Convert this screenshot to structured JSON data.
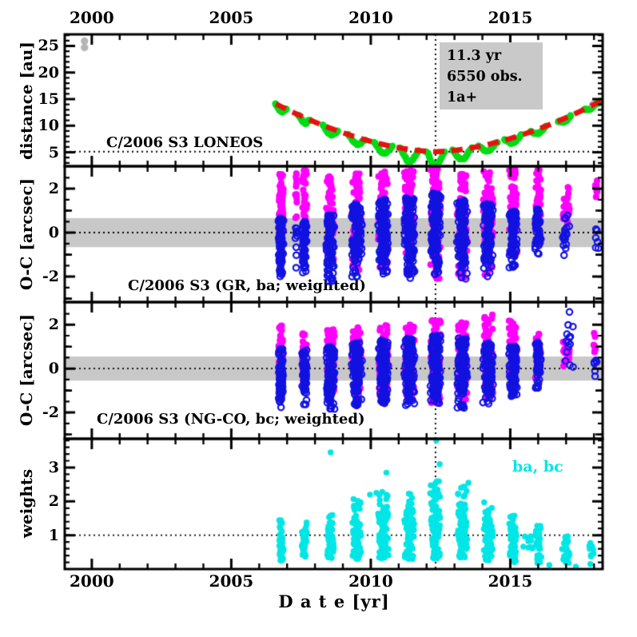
{
  "figure": {
    "background": "#ffffff",
    "annotation_box": {
      "bg": "#c9c9c9",
      "lines": [
        "11.3 yr",
        "6550 obs.",
        "1a+"
      ]
    },
    "colors": {
      "frame": "#000000",
      "red": "#ea1010",
      "green": "#00dc14",
      "magenta": "#ff00ff",
      "blue": "#1212e0",
      "cyan": "#00e6e6",
      "gray_band": "#c8c8c8",
      "gray_points": "#b5b5b5"
    }
  },
  "chart_data": {
    "type": "scatter",
    "title": "C/2006 S3 LONEOS",
    "x_axis": {
      "label": "D a t e [yr]",
      "range": [
        1999.03,
        2018.31
      ],
      "major_ticks": [
        2000,
        2005,
        2010,
        2015
      ],
      "major_tick_labels": [
        "2000",
        "2005",
        "2010",
        "2015"
      ],
      "minor_step": 1,
      "vline_dotted": 2012.32,
      "labels_on": "top-and-bottom"
    },
    "panels": [
      {
        "name": "distance",
        "ylabel": "distance [au]",
        "title": "C/2006 S3 LONEOS",
        "ylim": [
          2.38,
          27.17
        ],
        "ytick_labels": [
          "5",
          "10",
          "15",
          "20",
          "25"
        ],
        "ytick_values": [
          5,
          10,
          15,
          20,
          25
        ],
        "yminor_step": 1,
        "dotted_hline": 5.13,
        "model_curve": {
          "color": "red",
          "style": "thick-dashed",
          "perihelion_year": 2012.32,
          "perihelion_au": 5.13,
          "coeff": 0.462,
          "exponent": 1.7,
          "year_start": 2006.6,
          "year_end": 2018.25
        },
        "observed_seasons": {
          "color": "green",
          "marker": "filled-circle",
          "points_per_season": 18,
          "seasons": [
            [
              2006.78,
              0.2,
              0.9
            ],
            [
              2007.62,
              0.2,
              1.0
            ],
            [
              2008.55,
              0.27,
              1.2
            ],
            [
              2009.5,
              0.3,
              1.3
            ],
            [
              2010.45,
              0.33,
              1.6
            ],
            [
              2011.38,
              0.34,
              2.3
            ],
            [
              2012.32,
              0.34,
              2.5
            ],
            [
              2013.28,
              0.34,
              1.9
            ],
            [
              2014.2,
              0.33,
              1.3
            ],
            [
              2015.1,
              0.3,
              1.0
            ],
            [
              2016.0,
              0.27,
              0.8
            ],
            [
              2016.95,
              0.22,
              0.6
            ],
            [
              2017.85,
              0.2,
              0.5
            ],
            [
              2018.18,
              0.06,
              0.2
            ]
          ]
        },
        "extra_points": {
          "color": "gray_points",
          "points": [
            [
              1999.74,
              25.9
            ],
            [
              1999.74,
              24.7
            ],
            [
              2017.96,
              14.0
            ]
          ]
        }
      },
      {
        "name": "oc_gr",
        "ylabel": "O-C [arcsec]",
        "title": "C/2006 S3 (GR, ba; weighted)",
        "ylim": [
          -3.16,
          3.02
        ],
        "ytick_labels": [
          "-2",
          "0",
          "2"
        ],
        "ytick_values": [
          -2,
          0,
          2
        ],
        "ymedium_ticks": [
          -3,
          -1,
          1,
          3
        ],
        "yminor_step": 0.5,
        "dotted_hline": 0,
        "gray_band_halfwidth": 0.66,
        "series": [
          {
            "name": "ba-positive-residuals",
            "color": "magenta",
            "marker": "filled-circle",
            "clusters": [
              [
                2006.78,
                0.1,
                70,
                -0.15,
                2.85,
                0.45
              ],
              [
                2007.33,
                0.05,
                12,
                0.3,
                2.8,
                0.5
              ],
              [
                2007.62,
                0.1,
                50,
                -0.6,
                2.85,
                0.5
              ],
              [
                2008.55,
                0.16,
                85,
                -1.4,
                2.6,
                0.55
              ],
              [
                2009.5,
                0.2,
                95,
                -1.7,
                2.7,
                0.55
              ],
              [
                2010.45,
                0.2,
                105,
                -1.8,
                2.8,
                0.55
              ],
              [
                2011.38,
                0.2,
                110,
                -2.1,
                2.85,
                0.55
              ],
              [
                2012.32,
                0.2,
                115,
                -2.2,
                2.9,
                0.55
              ],
              [
                2013.28,
                0.2,
                105,
                -2.1,
                2.7,
                0.55
              ],
              [
                2014.2,
                0.2,
                95,
                -2.0,
                2.8,
                0.55
              ],
              [
                2015.1,
                0.15,
                85,
                -1.0,
                2.9,
                0.55
              ],
              [
                2016.0,
                0.12,
                50,
                -0.4,
                2.9,
                0.6
              ],
              [
                2017.0,
                0.15,
                25,
                0.1,
                2.1,
                0.5
              ],
              [
                2018.1,
                0.07,
                8,
                1.3,
                2.6,
                0.55
              ]
            ]
          },
          {
            "name": "ba-negative-residuals",
            "color": "blue",
            "marker": "open-circle",
            "clusters": [
              [
                2006.78,
                0.1,
                95,
                -2.1,
                0.7,
                0.6
              ],
              [
                2007.33,
                0.05,
                10,
                -1.6,
                0.3,
                0.6
              ],
              [
                2007.62,
                0.1,
                65,
                -2.0,
                0.5,
                0.6
              ],
              [
                2008.55,
                0.16,
                115,
                -2.3,
                0.8,
                0.6
              ],
              [
                2009.5,
                0.2,
                130,
                -2.0,
                1.3,
                0.6
              ],
              [
                2010.45,
                0.2,
                140,
                -1.9,
                1.5,
                0.6
              ],
              [
                2011.38,
                0.2,
                150,
                -2.1,
                1.6,
                0.6
              ],
              [
                2012.32,
                0.2,
                150,
                -1.9,
                1.8,
                0.6
              ],
              [
                2013.28,
                0.2,
                135,
                -2.2,
                1.5,
                0.6
              ],
              [
                2014.2,
                0.2,
                120,
                -2.0,
                1.3,
                0.6
              ],
              [
                2015.1,
                0.15,
                100,
                -1.6,
                1.0,
                0.6
              ],
              [
                2016.0,
                0.12,
                50,
                -1.0,
                1.1,
                0.55
              ],
              [
                2017.0,
                0.15,
                18,
                -1.2,
                0.9,
                0.6
              ],
              [
                2018.1,
                0.07,
                6,
                -1.1,
                0.4,
                0.6
              ]
            ]
          }
        ]
      },
      {
        "name": "oc_ngco",
        "ylabel": "O-C [arcsec]",
        "title": "C/2006 S3 (NG-CO, bc; weighted)",
        "ylim": [
          -3.2,
          3.03
        ],
        "ytick_labels": [
          "-2",
          "0",
          "2"
        ],
        "ytick_values": [
          -2,
          0,
          2
        ],
        "ymedium_ticks": [
          -3,
          -1,
          1,
          3
        ],
        "yminor_step": 0.5,
        "dotted_hline": 0,
        "gray_band_halfwidth": 0.55,
        "series": [
          {
            "name": "bc-positive-residuals",
            "color": "magenta",
            "marker": "filled-circle",
            "clusters": [
              [
                2006.78,
                0.1,
                60,
                -0.4,
                2.0,
                0.45
              ],
              [
                2007.62,
                0.1,
                45,
                -0.7,
                1.6,
                0.5
              ],
              [
                2008.55,
                0.16,
                85,
                -1.0,
                1.8,
                0.5
              ],
              [
                2009.5,
                0.2,
                95,
                -1.2,
                1.9,
                0.5
              ],
              [
                2010.45,
                0.2,
                105,
                -1.3,
                2.0,
                0.5
              ],
              [
                2011.38,
                0.2,
                110,
                -1.5,
                2.0,
                0.5
              ],
              [
                2012.32,
                0.2,
                115,
                -1.6,
                2.2,
                0.5
              ],
              [
                2013.28,
                0.2,
                105,
                -1.5,
                2.1,
                0.5
              ],
              [
                2014.2,
                0.2,
                95,
                -1.3,
                2.5,
                0.5
              ],
              [
                2015.1,
                0.15,
                85,
                -0.9,
                2.2,
                0.5
              ],
              [
                2016.0,
                0.12,
                48,
                -0.5,
                1.6,
                0.55
              ],
              [
                2017.0,
                0.15,
                20,
                0.0,
                1.3,
                0.5
              ],
              [
                2018.05,
                0.07,
                7,
                0.5,
                1.9,
                0.5
              ]
            ]
          },
          {
            "name": "bc-negative-residuals",
            "color": "blue",
            "marker": "open-circle",
            "clusters": [
              [
                2006.78,
                0.1,
                85,
                -1.9,
                0.9,
                0.55
              ],
              [
                2007.62,
                0.1,
                60,
                -1.7,
                0.9,
                0.55
              ],
              [
                2008.55,
                0.16,
                115,
                -1.9,
                1.0,
                0.55
              ],
              [
                2009.5,
                0.2,
                130,
                -1.7,
                1.2,
                0.55
              ],
              [
                2010.45,
                0.2,
                140,
                -1.6,
                1.3,
                0.55
              ],
              [
                2011.38,
                0.2,
                150,
                -1.7,
                1.4,
                0.55
              ],
              [
                2012.32,
                0.2,
                150,
                -1.6,
                1.5,
                0.55
              ],
              [
                2013.28,
                0.2,
                135,
                -1.8,
                1.4,
                0.55
              ],
              [
                2014.2,
                0.2,
                120,
                -1.6,
                1.2,
                0.55
              ],
              [
                2015.1,
                0.15,
                100,
                -1.3,
                1.0,
                0.55
              ],
              [
                2016.0,
                0.12,
                50,
                -0.9,
                1.2,
                0.55
              ],
              [
                2017.15,
                0.2,
                14,
                -0.3,
                2.6,
                0.45
              ],
              [
                2018.05,
                0.07,
                6,
                -0.9,
                0.4,
                0.5
              ]
            ]
          }
        ]
      },
      {
        "name": "weights",
        "ylabel": "weights",
        "legend": "ba, bc",
        "ylim": [
          0.0,
          3.85
        ],
        "ytick_labels": [
          "1",
          "2",
          "3"
        ],
        "ytick_values": [
          1,
          2,
          3
        ],
        "yminor_step": 0.2,
        "dotted_hline": 1,
        "series": [
          {
            "name": "weights-ba-bc",
            "color": "cyan",
            "marker": "filled-circle",
            "clusters": [
              [
                2006.78,
                0.1,
                55,
                0.25,
                1.45,
                0.5
              ],
              [
                2007.62,
                0.1,
                35,
                0.35,
                1.4,
                0.5
              ],
              [
                2008.55,
                0.16,
                70,
                0.3,
                1.6,
                0.45
              ],
              [
                2009.5,
                0.2,
                90,
                0.3,
                2.1,
                0.4
              ],
              [
                2010.45,
                0.2,
                100,
                0.3,
                2.3,
                0.4
              ],
              [
                2011.38,
                0.2,
                110,
                0.3,
                2.3,
                0.4
              ],
              [
                2012.32,
                0.2,
                110,
                0.3,
                2.6,
                0.4
              ],
              [
                2013.28,
                0.2,
                100,
                0.3,
                2.5,
                0.4
              ],
              [
                2014.2,
                0.2,
                90,
                0.25,
                2.0,
                0.4
              ],
              [
                2015.1,
                0.15,
                70,
                0.2,
                1.6,
                0.45
              ],
              [
                2015.65,
                0.3,
                10,
                0.6,
                1.05,
                0.5
              ],
              [
                2016.0,
                0.12,
                40,
                0.15,
                1.3,
                0.45
              ],
              [
                2017.0,
                0.15,
                25,
                0.1,
                1.1,
                0.45
              ],
              [
                2017.9,
                0.15,
                12,
                0.05,
                0.9,
                0.45
              ]
            ],
            "extra_points": [
              [
                2008.56,
                3.45
              ],
              [
                2010.56,
                2.85
              ],
              [
                2012.35,
                3.8
              ],
              [
                2012.47,
                3.1
              ],
              [
                2013.5,
                2.55
              ],
              [
                2009.97,
                2.2
              ],
              [
                2010.2,
                2.25
              ],
              [
                2016.4,
                0.12
              ],
              [
                2017.35,
                0.07
              ]
            ]
          }
        ]
      }
    ]
  }
}
